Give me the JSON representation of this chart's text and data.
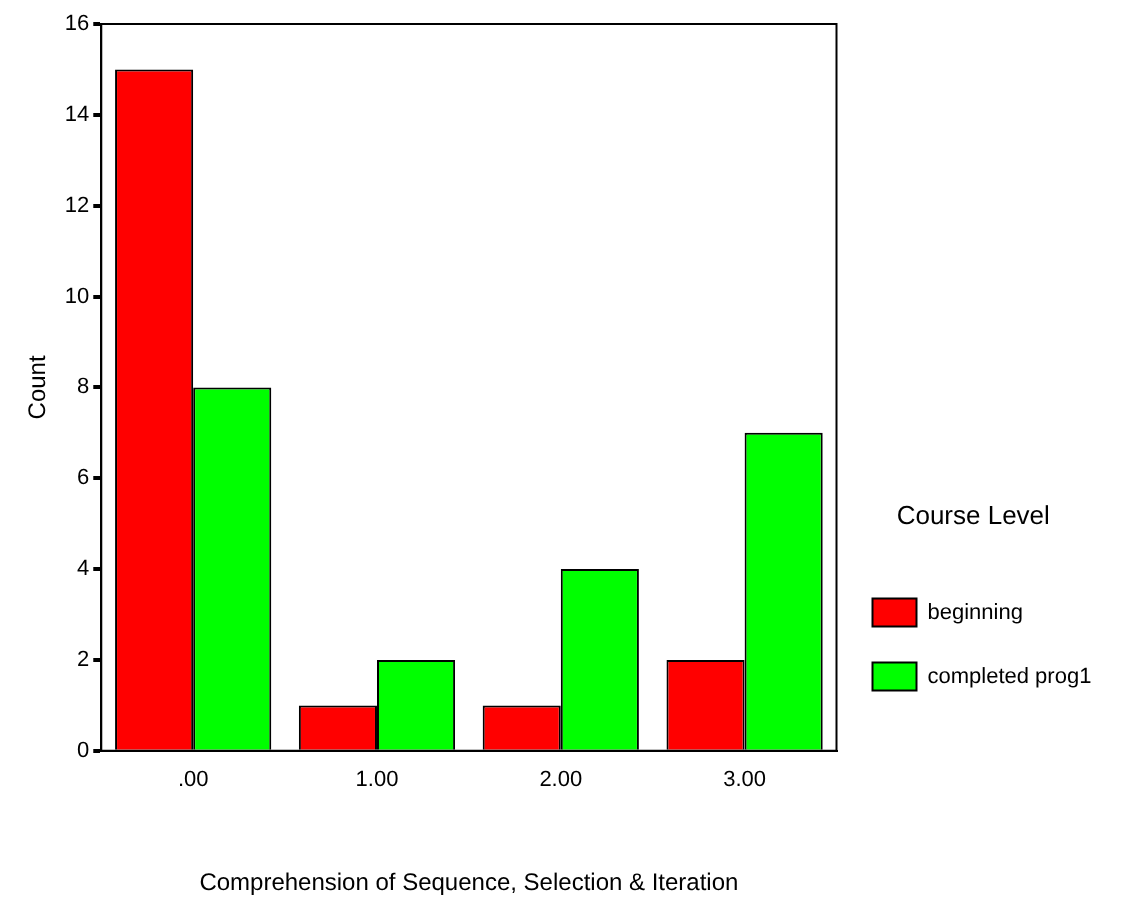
{
  "chart_data": {
    "type": "bar",
    "xlabel": "Comprehension of Sequence, Selection & Iteration",
    "ylabel": "Count",
    "legend_title": "Course Level",
    "categories": [
      ".00",
      "1.00",
      "2.00",
      "3.00"
    ],
    "series": [
      {
        "name": "beginning",
        "color": "#ff0000",
        "values": [
          15,
          1,
          1,
          2
        ]
      },
      {
        "name": "completed prog1",
        "color": "#00ff00",
        "values": [
          8,
          2,
          4,
          7
        ]
      }
    ],
    "ylim": [
      0,
      16
    ],
    "yticks": [
      0,
      2,
      4,
      6,
      8,
      10,
      12,
      14,
      16
    ],
    "grid": false,
    "legend": "right"
  }
}
